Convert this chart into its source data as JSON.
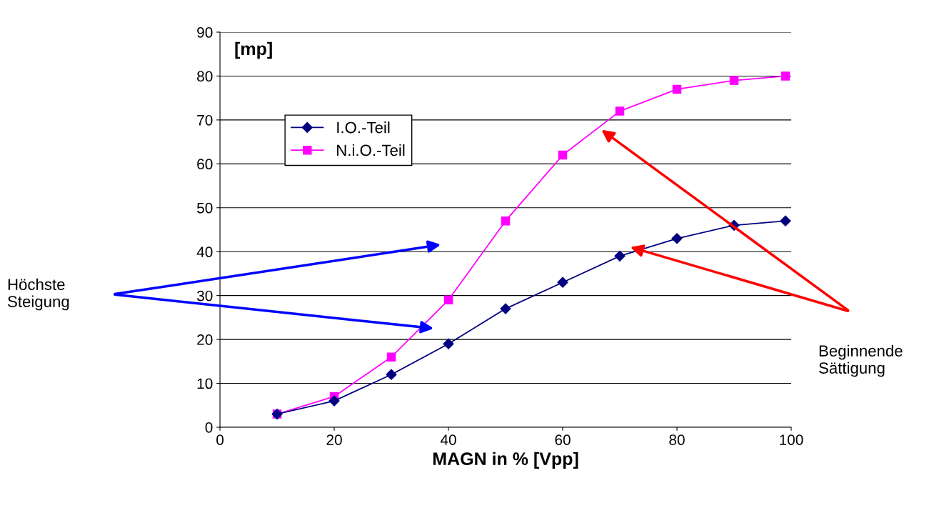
{
  "chart_data": {
    "type": "line",
    "xlabel": "MAGN in % [Vpp]",
    "ylabel": "[mp]",
    "x": [
      10,
      20,
      30,
      40,
      50,
      60,
      70,
      80,
      90,
      99
    ],
    "series": [
      {
        "name": "I.O.-Teil",
        "color": "#000080",
        "marker": "diamond",
        "values": [
          3,
          6,
          12,
          19,
          27,
          33,
          39,
          43,
          46,
          47
        ]
      },
      {
        "name": "N.i.O.-Teil",
        "color": "#ff00ff",
        "marker": "square",
        "values": [
          3,
          7,
          16,
          29,
          47,
          62,
          72,
          77,
          79,
          80
        ]
      }
    ],
    "xlim": [
      0,
      100
    ],
    "xticks": [
      0,
      20,
      40,
      60,
      80,
      100
    ],
    "ylim": [
      0,
      90
    ],
    "yticks": [
      0,
      10,
      20,
      30,
      40,
      50,
      60,
      70,
      80,
      90
    ],
    "grid": "y",
    "legend": "top left",
    "line_style": "solid",
    "annotations": [
      "Höchste\nSteigung",
      "Beginnende\nSättigung"
    ]
  }
}
